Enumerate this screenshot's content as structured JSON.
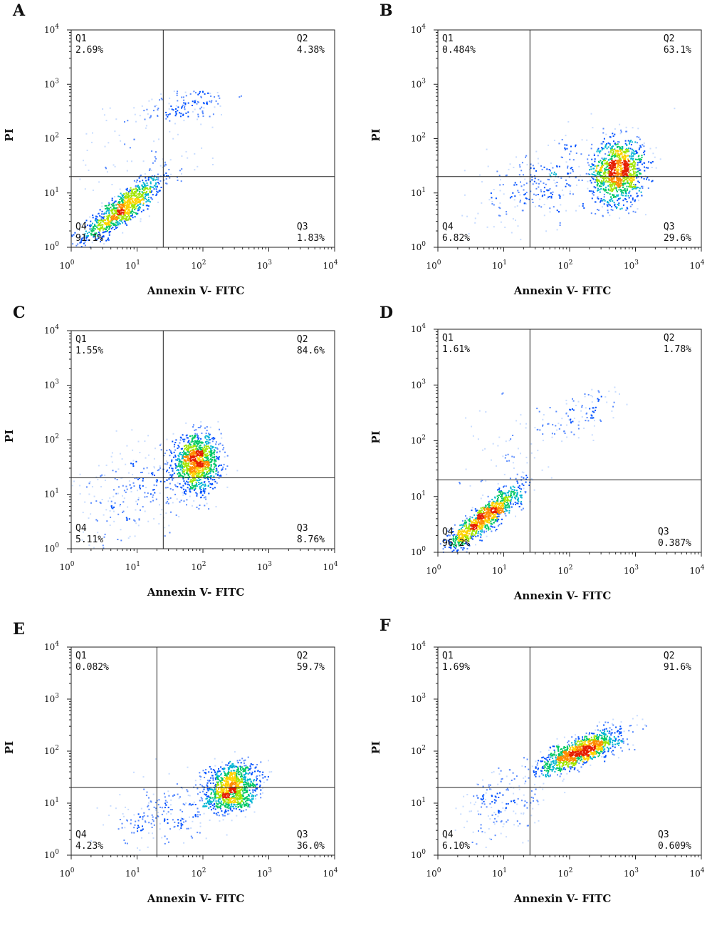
{
  "colors": {
    "density_scale": [
      "#c8dcff",
      "#5a8cff",
      "#1a1ab4",
      "#0050ff",
      "#00b4d2",
      "#00c864",
      "#a0e600",
      "#ffd200",
      "#ff8c00",
      "#e61e00"
    ],
    "frame": "#222222"
  },
  "chart_data": [
    {
      "type": "scatter",
      "panel": "A",
      "xlabel": "Annexin V- FITC",
      "ylabel": "PI",
      "x_scale": "log",
      "y_scale": "log",
      "xlim": [
        1,
        10000
      ],
      "ylim": [
        1,
        10000
      ],
      "x_ticks": [
        {
          "base": "10",
          "exp": "0"
        },
        {
          "base": "10",
          "exp": "1"
        },
        {
          "base": "10",
          "exp": "2"
        },
        {
          "base": "10",
          "exp": "3"
        },
        {
          "base": "10",
          "exp": "4"
        }
      ],
      "y_ticks": [
        {
          "base": "10",
          "exp": "0"
        },
        {
          "base": "10",
          "exp": "1"
        },
        {
          "base": "10",
          "exp": "2"
        },
        {
          "base": "10",
          "exp": "3"
        },
        {
          "base": "10",
          "exp": "4"
        }
      ],
      "gate": {
        "x": 25,
        "y": 20
      },
      "quadrants": [
        {
          "name": "Q1",
          "value": "2.69%"
        },
        {
          "name": "Q2",
          "value": "4.38%"
        },
        {
          "name": "Q3",
          "value": "1.83%"
        },
        {
          "name": "Q4",
          "value": "91.1%"
        }
      ],
      "clusters": [
        {
          "x": 6,
          "y": 5,
          "spread_x": 0.3,
          "spread_y": 0.3,
          "corr": 0.85,
          "count": 950
        },
        {
          "x": 60,
          "y": 400,
          "spread_x": 0.35,
          "spread_y": 0.18,
          "corr": 0.5,
          "count": 120
        },
        {
          "x": 15,
          "y": 80,
          "spread_x": 0.6,
          "spread_y": 0.5,
          "corr": 0.2,
          "count": 90
        }
      ]
    },
    {
      "type": "scatter",
      "panel": "B",
      "xlabel": "Annexin V- FITC",
      "ylabel": "PI",
      "x_scale": "log",
      "y_scale": "log",
      "xlim": [
        1,
        10000
      ],
      "ylim": [
        1,
        10000
      ],
      "x_ticks": [
        {
          "base": "10",
          "exp": "0"
        },
        {
          "base": "10",
          "exp": "1"
        },
        {
          "base": "10",
          "exp": "2"
        },
        {
          "base": "10",
          "exp": "3"
        },
        {
          "base": "10",
          "exp": "4"
        }
      ],
      "y_ticks": [
        {
          "base": "10",
          "exp": "0"
        },
        {
          "base": "10",
          "exp": "1"
        },
        {
          "base": "10",
          "exp": "2"
        },
        {
          "base": "10",
          "exp": "3"
        },
        {
          "base": "10",
          "exp": "4"
        }
      ],
      "gate": {
        "x": 25,
        "y": 20
      },
      "quadrants": [
        {
          "name": "Q1",
          "value": "0.484%"
        },
        {
          "name": "Q2",
          "value": "63.1%"
        },
        {
          "name": "Q3",
          "value": "29.6%"
        },
        {
          "name": "Q4",
          "value": "6.82%"
        }
      ],
      "clusters": [
        {
          "x": 550,
          "y": 25,
          "spread_x": 0.2,
          "spread_y": 0.3,
          "corr": 0.1,
          "count": 1100
        },
        {
          "x": 40,
          "y": 15,
          "spread_x": 0.55,
          "spread_y": 0.4,
          "corr": 0.4,
          "count": 280
        }
      ]
    },
    {
      "type": "scatter",
      "panel": "C",
      "xlabel": "Annexin V- FITC",
      "ylabel": "PI",
      "x_scale": "log",
      "y_scale": "log",
      "xlim": [
        1,
        10000
      ],
      "ylim": [
        1,
        10000
      ],
      "x_ticks": [
        {
          "base": "10",
          "exp": "0"
        },
        {
          "base": "10",
          "exp": "1"
        },
        {
          "base": "10",
          "exp": "2"
        },
        {
          "base": "10",
          "exp": "3"
        },
        {
          "base": "10",
          "exp": "4"
        }
      ],
      "y_ticks": [
        {
          "base": "10",
          "exp": "0"
        },
        {
          "base": "10",
          "exp": "1"
        },
        {
          "base": "10",
          "exp": "2"
        },
        {
          "base": "10",
          "exp": "3"
        },
        {
          "base": "10",
          "exp": "4"
        }
      ],
      "gate": {
        "x": 25,
        "y": 20
      },
      "quadrants": [
        {
          "name": "Q1",
          "value": "1.55%"
        },
        {
          "name": "Q2",
          "value": "84.6%"
        },
        {
          "name": "Q3",
          "value": "8.76%"
        },
        {
          "name": "Q4",
          "value": "5.11%"
        }
      ],
      "clusters": [
        {
          "x": 80,
          "y": 38,
          "spread_x": 0.18,
          "spread_y": 0.25,
          "corr": 0.1,
          "count": 1100
        },
        {
          "x": 10,
          "y": 10,
          "spread_x": 0.5,
          "spread_y": 0.45,
          "corr": 0.2,
          "count": 260
        }
      ]
    },
    {
      "type": "scatter",
      "panel": "D",
      "xlabel": "Annexin V- FITC",
      "ylabel": "PI",
      "x_scale": "log",
      "y_scale": "log",
      "xlim": [
        1,
        10000
      ],
      "ylim": [
        1,
        10000
      ],
      "x_ticks": [
        {
          "base": "10",
          "exp": "0"
        },
        {
          "base": "10",
          "exp": "1"
        },
        {
          "base": "10",
          "exp": "2"
        },
        {
          "base": "10",
          "exp": "3"
        },
        {
          "base": "10",
          "exp": "4"
        }
      ],
      "y_ticks": [
        {
          "base": "10",
          "exp": "0"
        },
        {
          "base": "10",
          "exp": "1"
        },
        {
          "base": "10",
          "exp": "2"
        },
        {
          "base": "10",
          "exp": "3"
        },
        {
          "base": "10",
          "exp": "4"
        }
      ],
      "gate": {
        "x": 25,
        "y": 20
      },
      "quadrants": [
        {
          "name": "Q1",
          "value": "1.61%"
        },
        {
          "name": "Q2",
          "value": "1.78%"
        },
        {
          "name": "Q3",
          "value": "0.387%"
        },
        {
          "name": "Q4",
          "value": "96.2%"
        }
      ],
      "clusters": [
        {
          "x": 5,
          "y": 4,
          "spread_x": 0.3,
          "spread_y": 0.3,
          "corr": 0.9,
          "count": 1000
        },
        {
          "x": 150,
          "y": 300,
          "spread_x": 0.35,
          "spread_y": 0.3,
          "corr": 0.6,
          "count": 110
        },
        {
          "x": 10,
          "y": 60,
          "spread_x": 0.4,
          "spread_y": 0.5,
          "corr": 0.3,
          "count": 60
        }
      ]
    },
    {
      "type": "scatter",
      "panel": "E",
      "xlabel": "Annexin V- FITC",
      "ylabel": "PI",
      "x_scale": "log",
      "y_scale": "log",
      "xlim": [
        1,
        10000
      ],
      "ylim": [
        1,
        10000
      ],
      "x_ticks": [
        {
          "base": "10",
          "exp": "0"
        },
        {
          "base": "10",
          "exp": "1"
        },
        {
          "base": "10",
          "exp": "2"
        },
        {
          "base": "10",
          "exp": "3"
        },
        {
          "base": "10",
          "exp": "4"
        }
      ],
      "y_ticks": [
        {
          "base": "10",
          "exp": "0"
        },
        {
          "base": "10",
          "exp": "1"
        },
        {
          "base": "10",
          "exp": "2"
        },
        {
          "base": "10",
          "exp": "3"
        },
        {
          "base": "10",
          "exp": "4"
        }
      ],
      "gate": {
        "x": 20,
        "y": 20
      },
      "quadrants": [
        {
          "name": "Q1",
          "value": "0.082%"
        },
        {
          "name": "Q2",
          "value": "59.7%"
        },
        {
          "name": "Q3",
          "value": "36.0%"
        },
        {
          "name": "Q4",
          "value": "4.23%"
        }
      ],
      "clusters": [
        {
          "x": 280,
          "y": 25,
          "spread_x": 0.2,
          "spread_y": 0.2,
          "corr": 0.1,
          "count": 700
        },
        {
          "x": 250,
          "y": 12,
          "spread_x": 0.2,
          "spread_y": 0.15,
          "corr": 0.1,
          "count": 350
        },
        {
          "x": 30,
          "y": 6,
          "spread_x": 0.45,
          "spread_y": 0.35,
          "corr": 0.5,
          "count": 220
        }
      ]
    },
    {
      "type": "scatter",
      "panel": "F",
      "xlabel": "Annexin V- FITC",
      "ylabel": "PI",
      "x_scale": "log",
      "y_scale": "log",
      "xlim": [
        1,
        10000
      ],
      "ylim": [
        1,
        10000
      ],
      "x_ticks": [
        {
          "base": "10",
          "exp": "0"
        },
        {
          "base": "10",
          "exp": "1"
        },
        {
          "base": "10",
          "exp": "2"
        },
        {
          "base": "10",
          "exp": "3"
        },
        {
          "base": "10",
          "exp": "4"
        }
      ],
      "y_ticks": [
        {
          "base": "10",
          "exp": "0"
        },
        {
          "base": "10",
          "exp": "1"
        },
        {
          "base": "10",
          "exp": "2"
        },
        {
          "base": "10",
          "exp": "3"
        },
        {
          "base": "10",
          "exp": "4"
        }
      ],
      "gate": {
        "x": 25,
        "y": 20
      },
      "quadrants": [
        {
          "name": "Q1",
          "value": "1.69%"
        },
        {
          "name": "Q2",
          "value": "91.6%"
        },
        {
          "name": "Q3",
          "value": "0.609%"
        },
        {
          "name": "Q4",
          "value": "6.10%"
        }
      ],
      "clusters": [
        {
          "x": 150,
          "y": 100,
          "spread_x": 0.3,
          "spread_y": 0.2,
          "corr": 0.75,
          "count": 1100
        },
        {
          "x": 10,
          "y": 10,
          "spread_x": 0.35,
          "spread_y": 0.35,
          "corr": 0.3,
          "count": 180
        }
      ]
    }
  ]
}
